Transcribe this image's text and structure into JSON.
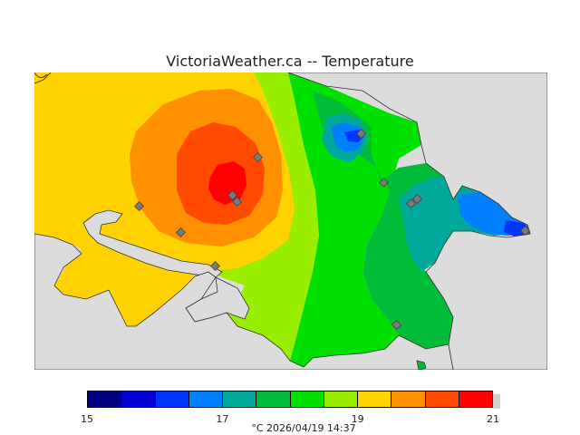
{
  "header": {
    "title": "VictoriaWeather.ca -- Temperature"
  },
  "legend": {
    "colors": [
      "#000080",
      "#0000d4",
      "#0035ff",
      "#0080ff",
      "#00a89c",
      "#00bc38",
      "#00e000",
      "#99ee00",
      "#ffd200",
      "#ff9000",
      "#ff4a00",
      "#ff0000"
    ],
    "ticks": [
      {
        "label": "15",
        "value": 15
      },
      {
        "label": "17",
        "value": 17
      },
      {
        "label": "19",
        "value": 19
      },
      {
        "label": "21",
        "value": 21
      }
    ],
    "min": 15,
    "max": 21
  },
  "footer": {
    "caption": "°C  2026/04/19 14:37"
  }
}
